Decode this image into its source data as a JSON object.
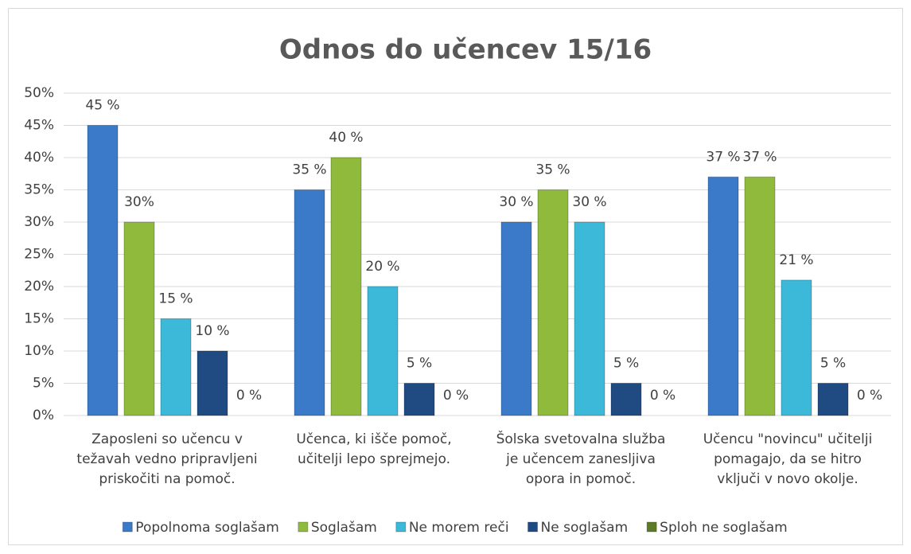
{
  "chart_data": {
    "type": "bar",
    "title": "Odnos do učencev 15/16",
    "categories": [
      [
        "Zaposleni so učencu v",
        "težavah vedno pripravljeni",
        "priskočiti na pomoč."
      ],
      [
        "Učenca, ki išče pomoč,",
        "učitelji lepo sprejmejo."
      ],
      [
        "Šolska svetovalna služba",
        "je učencem zanesljiva",
        "opora in pomoč."
      ],
      [
        "Učencu \"novincu\" učitelji",
        "pomagajo, da se hitro",
        "vključi v novo okolje."
      ]
    ],
    "series": [
      {
        "name": "Popolnoma soglašam",
        "color": "#3b79c9",
        "values": [
          45,
          35,
          30,
          37
        ],
        "value_labels": [
          "45 %",
          "35 %",
          "30 %",
          "37 %"
        ]
      },
      {
        "name": "Soglašam",
        "color": "#8fba3c",
        "values": [
          30,
          40,
          35,
          37
        ],
        "value_labels": [
          "30%",
          "40 %",
          "35 %",
          "37 %"
        ]
      },
      {
        "name": "Ne morem reči",
        "color": "#3cb8d8",
        "values": [
          15,
          20,
          30,
          21
        ],
        "value_labels": [
          "15 %",
          "20 %",
          "30 %",
          "21 %"
        ]
      },
      {
        "name": "Ne soglašam",
        "color": "#1f4b82",
        "values": [
          10,
          5,
          5,
          5
        ],
        "value_labels": [
          "10 %",
          "5 %",
          "5 %",
          "5 %"
        ]
      },
      {
        "name": "Sploh ne soglašam",
        "color": "#5b7b29",
        "values": [
          0,
          0,
          0,
          0
        ],
        "value_labels": [
          "0 %",
          "0 %",
          "0 %",
          "0 %"
        ]
      }
    ],
    "ylim": [
      0,
      50
    ],
    "yticks": [
      {
        "value": 0,
        "label": "0%"
      },
      {
        "value": 5,
        "label": "5%"
      },
      {
        "value": 10,
        "label": "10%"
      },
      {
        "value": 15,
        "label": "15%"
      },
      {
        "value": 20,
        "label": "20%"
      },
      {
        "value": 25,
        "label": "25%"
      },
      {
        "value": 30,
        "label": "30%"
      },
      {
        "value": 35,
        "label": "35%"
      },
      {
        "value": 40,
        "label": "40%"
      },
      {
        "value": 45,
        "label": "45%"
      },
      {
        "value": 50,
        "label": "50%"
      }
    ],
    "grid": true,
    "legend": "bottom"
  }
}
